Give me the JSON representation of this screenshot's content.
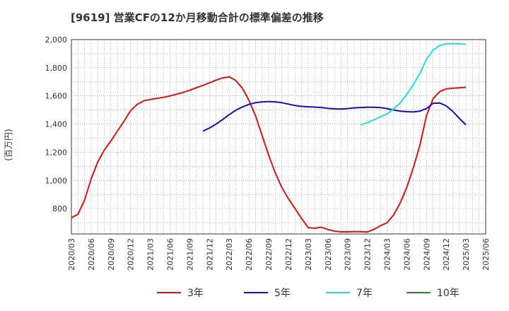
{
  "chart_data": {
    "type": "line",
    "title": "[9619]  営業CFの12か月移動合計の標準偏差の推移",
    "ylabel": "(百万円)",
    "xlabel": "",
    "ylim": [
      620,
      2000
    ],
    "yticks": [
      800,
      1000,
      1200,
      1400,
      1600,
      1800,
      2000
    ],
    "ytick_labels": [
      "800",
      "1,000",
      "1,200",
      "1,400",
      "1,600",
      "1,800",
      "2,000"
    ],
    "xticks": [
      "2020/03",
      "2020/06",
      "2020/09",
      "2020/12",
      "2021/03",
      "2021/06",
      "2021/09",
      "2021/12",
      "2022/03",
      "2022/06",
      "2022/09",
      "2022/12",
      "2023/03",
      "2023/06",
      "2023/09",
      "2023/12",
      "2024/03",
      "2024/06",
      "2024/09",
      "2024/12",
      "2025/03",
      "2025/06"
    ],
    "grid": true,
    "legend_position": "bottom",
    "series": [
      {
        "name": "3年",
        "color": "#dd1111",
        "x": [
          "2020/03",
          "2020/04",
          "2020/05",
          "2020/06",
          "2020/07",
          "2020/08",
          "2020/09",
          "2020/10",
          "2020/11",
          "2020/12",
          "2021/01",
          "2021/02",
          "2021/03",
          "2021/04",
          "2021/05",
          "2021/06",
          "2021/07",
          "2021/08",
          "2021/09",
          "2021/10",
          "2021/11",
          "2021/12",
          "2022/01",
          "2022/02",
          "2022/03",
          "2022/04",
          "2022/05",
          "2022/06",
          "2022/07",
          "2022/08",
          "2022/09",
          "2022/10",
          "2022/11",
          "2022/12",
          "2023/01",
          "2023/02",
          "2023/03",
          "2023/04",
          "2023/05",
          "2023/06",
          "2023/07",
          "2023/08",
          "2023/09",
          "2023/10",
          "2023/11",
          "2023/12",
          "2024/01",
          "2024/02",
          "2024/03",
          "2024/04",
          "2024/05",
          "2024/06",
          "2024/07",
          "2024/08",
          "2024/09",
          "2024/10",
          "2024/11",
          "2024/12",
          "2025/01",
          "2025/02",
          "2025/03"
        ],
        "values": [
          735,
          760,
          860,
          1010,
          1130,
          1215,
          1280,
          1350,
          1420,
          1495,
          1540,
          1565,
          1575,
          1582,
          1590,
          1600,
          1612,
          1625,
          1640,
          1658,
          1675,
          1693,
          1712,
          1728,
          1735,
          1710,
          1655,
          1570,
          1460,
          1320,
          1180,
          1055,
          950,
          870,
          800,
          730,
          665,
          660,
          668,
          652,
          640,
          635,
          635,
          636,
          636,
          634,
          652,
          678,
          700,
          755,
          840,
          950,
          1090,
          1250,
          1460,
          1580,
          1630,
          1650,
          1655,
          1658,
          1662
        ]
      },
      {
        "name": "5年",
        "color": "#1111bb",
        "x": [
          "2021/11",
          "2021/12",
          "2022/01",
          "2022/02",
          "2022/03",
          "2022/04",
          "2022/05",
          "2022/06",
          "2022/07",
          "2022/08",
          "2022/09",
          "2022/10",
          "2022/11",
          "2022/12",
          "2023/01",
          "2023/02",
          "2023/03",
          "2023/04",
          "2023/05",
          "2023/06",
          "2023/07",
          "2023/08",
          "2023/09",
          "2023/10",
          "2023/11",
          "2023/12",
          "2024/01",
          "2024/02",
          "2024/03",
          "2024/04",
          "2024/05",
          "2024/06",
          "2024/07",
          "2024/08",
          "2024/09",
          "2024/10",
          "2024/11",
          "2024/12",
          "2025/01",
          "2025/02",
          "2025/03"
        ],
        "values": [
          1350,
          1372,
          1400,
          1432,
          1467,
          1498,
          1522,
          1540,
          1552,
          1558,
          1560,
          1558,
          1552,
          1542,
          1532,
          1526,
          1523,
          1521,
          1518,
          1512,
          1508,
          1507,
          1510,
          1515,
          1518,
          1520,
          1520,
          1517,
          1510,
          1500,
          1492,
          1488,
          1486,
          1492,
          1510,
          1548,
          1550,
          1530,
          1490,
          1440,
          1395
        ]
      },
      {
        "name": "7年",
        "color": "#22dddd",
        "x": [
          "2023/11",
          "2023/12",
          "2024/01",
          "2024/02",
          "2024/03",
          "2024/04",
          "2024/05",
          "2024/06",
          "2024/07",
          "2024/08",
          "2024/09",
          "2024/10",
          "2024/11",
          "2024/12",
          "2025/01",
          "2025/02",
          "2025/03"
        ],
        "values": [
          1395,
          1410,
          1430,
          1452,
          1472,
          1508,
          1550,
          1610,
          1680,
          1760,
          1862,
          1925,
          1958,
          1970,
          1972,
          1970,
          1966
        ]
      },
      {
        "name": "10年",
        "color": "#228822",
        "x": [],
        "values": []
      }
    ]
  }
}
